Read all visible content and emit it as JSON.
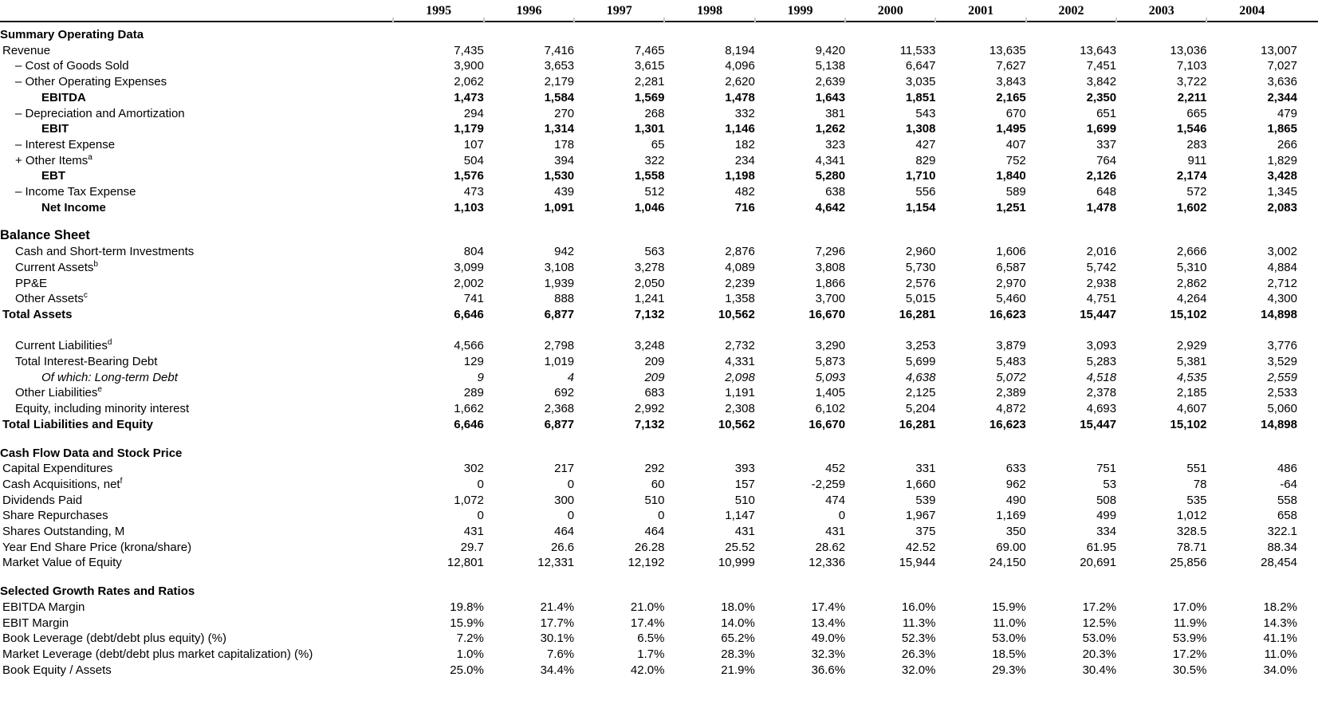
{
  "table": {
    "years": [
      "1995",
      "1996",
      "1997",
      "1998",
      "1999",
      "2000",
      "2001",
      "2002",
      "2003",
      "2004"
    ],
    "sections": [
      {
        "title": "Summary Operating Data",
        "rows": [
          {
            "label": "Revenue",
            "indent": 0,
            "values": [
              "7,435",
              "7,416",
              "7,465",
              "8,194",
              "9,420",
              "11,533",
              "13,635",
              "13,643",
              "13,036",
              "13,007"
            ]
          },
          {
            "label": "– Cost of Goods Sold",
            "indent": 1,
            "values": [
              "3,900",
              "3,653",
              "3,615",
              "4,096",
              "5,138",
              "6,647",
              "7,627",
              "7,451",
              "7,103",
              "7,027"
            ]
          },
          {
            "label": "– Other Operating Expenses",
            "indent": 1,
            "values": [
              "2,062",
              "2,179",
              "2,281",
              "2,620",
              "2,639",
              "3,035",
              "3,843",
              "3,842",
              "3,722",
              "3,636"
            ]
          },
          {
            "label": "EBITDA",
            "indent": 2,
            "style": "bold",
            "values": [
              "1,473",
              "1,584",
              "1,569",
              "1,478",
              "1,643",
              "1,851",
              "2,165",
              "2,350",
              "2,211",
              "2,344"
            ]
          },
          {
            "label": "– Depreciation and Amortization",
            "indent": 1,
            "values": [
              "294",
              "270",
              "268",
              "332",
              "381",
              "543",
              "670",
              "651",
              "665",
              "479"
            ]
          },
          {
            "label": "EBIT",
            "indent": 2,
            "style": "bold",
            "values": [
              "1,179",
              "1,314",
              "1,301",
              "1,146",
              "1,262",
              "1,308",
              "1,495",
              "1,699",
              "1,546",
              "1,865"
            ]
          },
          {
            "label": "– Interest Expense",
            "indent": 1,
            "values": [
              "107",
              "178",
              "65",
              "182",
              "323",
              "427",
              "407",
              "337",
              "283",
              "266"
            ]
          },
          {
            "label": "+ Other Items",
            "sup": "a",
            "indent": 1,
            "values": [
              "504",
              "394",
              "322",
              "234",
              "4,341",
              "829",
              "752",
              "764",
              "911",
              "1,829"
            ]
          },
          {
            "label": "EBT",
            "indent": 2,
            "style": "bold",
            "values": [
              "1,576",
              "1,530",
              "1,558",
              "1,198",
              "5,280",
              "1,710",
              "1,840",
              "2,126",
              "2,174",
              "3,428"
            ]
          },
          {
            "label": "– Income Tax Expense",
            "indent": 1,
            "values": [
              "473",
              "439",
              "512",
              "482",
              "638",
              "556",
              "589",
              "648",
              "572",
              "1,345"
            ]
          },
          {
            "label": "Net Income",
            "indent": 2,
            "style": "bold",
            "values": [
              "1,103",
              "1,091",
              "1,046",
              "716",
              "4,642",
              "1,154",
              "1,251",
              "1,478",
              "1,602",
              "2,083"
            ]
          }
        ]
      },
      {
        "title": "Balance Sheet",
        "large_title": true,
        "rows": [
          {
            "label": "Cash and Short-term Investments",
            "indent": 1,
            "values": [
              "804",
              "942",
              "563",
              "2,876",
              "7,296",
              "2,960",
              "1,606",
              "2,016",
              "2,666",
              "3,002"
            ]
          },
          {
            "label": "Current Assets",
            "sup": "b",
            "indent": 1,
            "values": [
              "3,099",
              "3,108",
              "3,278",
              "4,089",
              "3,808",
              "5,730",
              "6,587",
              "5,742",
              "5,310",
              "4,884"
            ]
          },
          {
            "label": "PP&E",
            "indent": 1,
            "values": [
              "2,002",
              "1,939",
              "2,050",
              "2,239",
              "1,866",
              "2,576",
              "2,970",
              "2,938",
              "2,862",
              "2,712"
            ]
          },
          {
            "label": "Other Assets",
            "sup": "c",
            "indent": 1,
            "values": [
              "741",
              "888",
              "1,241",
              "1,358",
              "3,700",
              "5,015",
              "5,460",
              "4,751",
              "4,264",
              "4,300"
            ]
          },
          {
            "label": "Total Assets",
            "indent": 0,
            "style": "bold",
            "values": [
              "6,646",
              "6,877",
              "7,132",
              "10,562",
              "16,670",
              "16,281",
              "16,623",
              "15,447",
              "15,102",
              "14,898"
            ]
          },
          {
            "type": "spacer"
          },
          {
            "label": "Current Liabilities",
            "sup": "d",
            "indent": 1,
            "values": [
              "4,566",
              "2,798",
              "3,248",
              "2,732",
              "3,290",
              "3,253",
              "3,879",
              "3,093",
              "2,929",
              "3,776"
            ]
          },
          {
            "label": "Total Interest-Bearing Debt",
            "indent": 1,
            "values": [
              "129",
              "1,019",
              "209",
              "4,331",
              "5,873",
              "5,699",
              "5,483",
              "5,283",
              "5,381",
              "3,529"
            ]
          },
          {
            "label": "Of which: Long-term Debt",
            "indent": 2,
            "style": "italic",
            "values": [
              "9",
              "4",
              "209",
              "2,098",
              "5,093",
              "4,638",
              "5,072",
              "4,518",
              "4,535",
              "2,559"
            ]
          },
          {
            "label": "Other Liabilities",
            "sup": "e",
            "indent": 1,
            "values": [
              "289",
              "692",
              "683",
              "1,191",
              "1,405",
              "2,125",
              "2,389",
              "2,378",
              "2,185",
              "2,533"
            ]
          },
          {
            "label": "Equity, including minority interest",
            "indent": 1,
            "values": [
              "1,662",
              "2,368",
              "2,992",
              "2,308",
              "6,102",
              "5,204",
              "4,872",
              "4,693",
              "4,607",
              "5,060"
            ]
          },
          {
            "label": "Total Liabilities and Equity",
            "indent": 0,
            "style": "bold",
            "values": [
              "6,646",
              "6,877",
              "7,132",
              "10,562",
              "16,670",
              "16,281",
              "16,623",
              "15,447",
              "15,102",
              "14,898"
            ]
          }
        ]
      },
      {
        "title": "Cash Flow Data and Stock Price",
        "rows": [
          {
            "label": "Capital Expenditures",
            "indent": 0,
            "values": [
              "302",
              "217",
              "292",
              "393",
              "452",
              "331",
              "633",
              "751",
              "551",
              "486"
            ]
          },
          {
            "label": "Cash Acquisitions, net",
            "sup": "f",
            "indent": 0,
            "values": [
              "0",
              "0",
              "60",
              "157",
              "-2,259",
              "1,660",
              "962",
              "53",
              "78",
              "-64"
            ]
          },
          {
            "label": "Dividends Paid",
            "indent": 0,
            "values": [
              "1,072",
              "300",
              "510",
              "510",
              "474",
              "539",
              "490",
              "508",
              "535",
              "558"
            ]
          },
          {
            "label": "Share Repurchases",
            "indent": 0,
            "values": [
              "0",
              "0",
              "0",
              "1,147",
              "0",
              "1,967",
              "1,169",
              "499",
              "1,012",
              "658"
            ]
          },
          {
            "label": "Shares Outstanding, M",
            "indent": 0,
            "values": [
              "431",
              "464",
              "464",
              "431",
              "431",
              "375",
              "350",
              "334",
              "328.5",
              "322.1"
            ]
          },
          {
            "label": "Year End Share Price (krona/share)",
            "indent": 0,
            "values": [
              "29.7",
              "26.6",
              "26.28",
              "25.52",
              "28.62",
              "42.52",
              "69.00",
              "61.95",
              "78.71",
              "88.34"
            ]
          },
          {
            "label": "Market Value of Equity",
            "indent": 0,
            "values": [
              "12,801",
              "12,331",
              "12,192",
              "10,999",
              "12,336",
              "15,944",
              "24,150",
              "20,691",
              "25,856",
              "28,454"
            ]
          }
        ]
      },
      {
        "title": "Selected Growth Rates and Ratios",
        "rows": [
          {
            "label": "EBITDA Margin",
            "indent": 0,
            "values": [
              "19.8%",
              "21.4%",
              "21.0%",
              "18.0%",
              "17.4%",
              "16.0%",
              "15.9%",
              "17.2%",
              "17.0%",
              "18.2%"
            ]
          },
          {
            "label": "EBIT Margin",
            "indent": 0,
            "values": [
              "15.9%",
              "17.7%",
              "17.4%",
              "14.0%",
              "13.4%",
              "11.3%",
              "11.0%",
              "12.5%",
              "11.9%",
              "14.3%"
            ]
          },
          {
            "label": "Book Leverage (debt/debt plus equity) (%)",
            "indent": 0,
            "values": [
              "7.2%",
              "30.1%",
              "6.5%",
              "65.2%",
              "49.0%",
              "52.3%",
              "53.0%",
              "53.0%",
              "53.9%",
              "41.1%"
            ]
          },
          {
            "label": "Market Leverage (debt/debt plus market capitalization) (%)",
            "indent": 0,
            "values": [
              "1.0%",
              "7.6%",
              "1.7%",
              "28.3%",
              "32.3%",
              "26.3%",
              "18.5%",
              "20.3%",
              "17.2%",
              "11.0%"
            ]
          },
          {
            "label": "Book Equity / Assets",
            "indent": 0,
            "values": [
              "25.0%",
              "34.4%",
              "42.0%",
              "21.9%",
              "36.6%",
              "32.0%",
              "29.3%",
              "30.4%",
              "30.5%",
              "34.0%"
            ]
          }
        ]
      }
    ]
  }
}
